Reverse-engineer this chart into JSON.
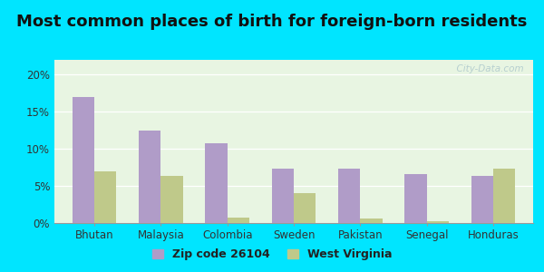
{
  "title": "Most common places of birth for foreign-born residents",
  "categories": [
    "Bhutan",
    "Malaysia",
    "Colombia",
    "Sweden",
    "Pakistan",
    "Senegal",
    "Honduras"
  ],
  "zip_values": [
    17.0,
    12.5,
    10.8,
    7.3,
    7.3,
    6.6,
    6.4
  ],
  "wv_values": [
    7.0,
    6.3,
    0.7,
    4.0,
    0.6,
    0.2,
    7.3
  ],
  "zip_color": "#b09cc8",
  "wv_color": "#bfc98a",
  "background_outer": "#00e5ff",
  "background_inner": "#e8f5e2",
  "title_fontsize": 13,
  "tick_fontsize": 8.5,
  "legend_fontsize": 9,
  "ylim": [
    0,
    22
  ],
  "yticks": [
    0,
    5,
    10,
    15,
    20
  ],
  "ytick_labels": [
    "0%",
    "5%",
    "10%",
    "15%",
    "20%"
  ],
  "watermark": "  City-Data.com",
  "legend_zip_label": "Zip code 26104",
  "legend_wv_label": "West Virginia",
  "bar_width": 0.33
}
